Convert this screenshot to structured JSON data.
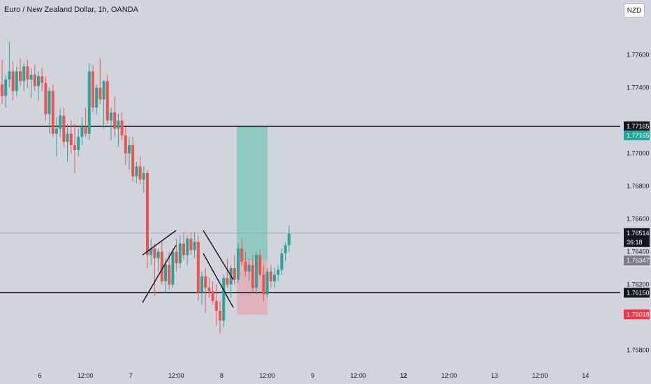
{
  "header": {
    "title": "Euro / New Zealand Dollar, 1h, OANDA",
    "currency_button": "NZD"
  },
  "colors": {
    "background": "#d1d4dc",
    "up": "#26a69a",
    "down": "#ef5350",
    "line": "#000000",
    "profit_zone": "#8fc9c2",
    "loss_zone": "#e0b3bc"
  },
  "chart_data": {
    "type": "candlestick",
    "symbol": "Euro / New Zealand Dollar",
    "timeframe": "1h",
    "source": "OANDA",
    "ylim": [
      1.757,
      1.7785
    ],
    "y_ticks": [
      "1.77600",
      "1.77400",
      "1.77000",
      "1.76800",
      "1.76600",
      "1.76400",
      "1.76200",
      "1.75800"
    ],
    "x_ticks": [
      {
        "label": "6",
        "bold": false
      },
      {
        "label": "12:00",
        "bold": false
      },
      {
        "label": "7",
        "bold": false
      },
      {
        "label": "12:00",
        "bold": false
      },
      {
        "label": "8",
        "bold": false
      },
      {
        "label": "12:00",
        "bold": false
      },
      {
        "label": "9",
        "bold": false
      },
      {
        "label": "12:00",
        "bold": false
      },
      {
        "label": "12",
        "bold": true
      },
      {
        "label": "12:00",
        "bold": false
      },
      {
        "label": "13",
        "bold": false
      },
      {
        "label": "12:00",
        "bold": false
      },
      {
        "label": "14",
        "bold": false
      }
    ],
    "horizontal_lines": [
      1.77165,
      1.7615
    ],
    "current_price_line": 1.76514,
    "price_labels": [
      {
        "value": 1.77165,
        "text": "1.77165",
        "style": "dark"
      },
      {
        "value": 1.77165,
        "text": "1.77165",
        "style": "green",
        "offset": 1
      },
      {
        "value": 1.76514,
        "text": "1.76514",
        "style": "dark"
      },
      {
        "value": 1.76514,
        "text": "36:18",
        "style": "dark",
        "offset": 1
      },
      {
        "value": 1.76347,
        "text": "1.76347",
        "style": "gray"
      },
      {
        "value": 1.7615,
        "text": "1.76150",
        "style": "dark"
      },
      {
        "value": 1.76018,
        "text": "1.76018",
        "style": "red"
      }
    ],
    "position": {
      "entry": 1.76347,
      "target": 1.77165,
      "stop": 1.76018
    },
    "channels": [
      {
        "lines": [
          [
            [
              1.7638,
              0
            ],
            [
              1.7653,
              1
            ]
          ],
          [
            [
              1.7609,
              0
            ],
            [
              1.7644,
              1
            ]
          ]
        ]
      },
      {
        "lines": [
          [
            [
              1.7653,
              0
            ],
            [
              1.7623,
              1
            ]
          ],
          [
            [
              1.7639,
              0
            ],
            [
              1.7606,
              1
            ]
          ]
        ]
      }
    ],
    "candles": [
      [
        1.7742,
        1.7757,
        1.773,
        1.7735
      ],
      [
        1.7735,
        1.7748,
        1.7728,
        1.7745
      ],
      [
        1.7745,
        1.7768,
        1.774,
        1.775
      ],
      [
        1.775,
        1.7756,
        1.7732,
        1.7738
      ],
      [
        1.7738,
        1.7753,
        1.7735,
        1.775
      ],
      [
        1.775,
        1.7758,
        1.7741,
        1.7744
      ],
      [
        1.7744,
        1.7755,
        1.7738,
        1.7753
      ],
      [
        1.7753,
        1.7757,
        1.774,
        1.7745
      ],
      [
        1.7745,
        1.7752,
        1.7734,
        1.7748
      ],
      [
        1.7748,
        1.7754,
        1.7738,
        1.7741
      ],
      [
        1.7741,
        1.775,
        1.7732,
        1.7747
      ],
      [
        1.7747,
        1.7752,
        1.7738,
        1.7743
      ],
      [
        1.7743,
        1.7747,
        1.772,
        1.7724
      ],
      [
        1.7724,
        1.774,
        1.7712,
        1.7738
      ],
      [
        1.7738,
        1.7742,
        1.771,
        1.7712
      ],
      [
        1.7712,
        1.7722,
        1.7698,
        1.7715
      ],
      [
        1.7715,
        1.7727,
        1.771,
        1.7723
      ],
      [
        1.7723,
        1.7728,
        1.7704,
        1.7707
      ],
      [
        1.7707,
        1.7718,
        1.7695,
        1.7712
      ],
      [
        1.7712,
        1.772,
        1.77,
        1.7705
      ],
      [
        1.7705,
        1.7718,
        1.7688,
        1.7702
      ],
      [
        1.7702,
        1.7715,
        1.7698,
        1.771
      ],
      [
        1.771,
        1.7722,
        1.7705,
        1.7716
      ],
      [
        1.7716,
        1.7728,
        1.771,
        1.7712
      ],
      [
        1.7712,
        1.7755,
        1.7708,
        1.775
      ],
      [
        1.775,
        1.7754,
        1.7725,
        1.7728
      ],
      [
        1.7728,
        1.7742,
        1.7724,
        1.774
      ],
      [
        1.774,
        1.7758,
        1.773,
        1.7733
      ],
      [
        1.7733,
        1.7745,
        1.7715,
        1.7744
      ],
      [
        1.7744,
        1.7748,
        1.7718,
        1.772
      ],
      [
        1.772,
        1.7728,
        1.7708,
        1.7725
      ],
      [
        1.7725,
        1.7735,
        1.771,
        1.7715
      ],
      [
        1.7715,
        1.7724,
        1.7704,
        1.772
      ],
      [
        1.772,
        1.7725,
        1.7708,
        1.7711
      ],
      [
        1.7711,
        1.7716,
        1.7693,
        1.77
      ],
      [
        1.77,
        1.771,
        1.769,
        1.7705
      ],
      [
        1.7705,
        1.771,
        1.7683,
        1.7686
      ],
      [
        1.7686,
        1.7695,
        1.7682,
        1.7692
      ],
      [
        1.7692,
        1.7698,
        1.7681,
        1.7684
      ],
      [
        1.7684,
        1.7692,
        1.7676,
        1.7688
      ],
      [
        1.7688,
        1.769,
        1.763,
        1.7638
      ],
      [
        1.7638,
        1.7648,
        1.7632,
        1.7642
      ],
      [
        1.7642,
        1.7645,
        1.7613,
        1.7636
      ],
      [
        1.7636,
        1.7642,
        1.7628,
        1.764
      ],
      [
        1.764,
        1.7646,
        1.762,
        1.7622
      ],
      [
        1.7622,
        1.7636,
        1.7615,
        1.7632
      ],
      [
        1.7632,
        1.764,
        1.7617,
        1.762
      ],
      [
        1.762,
        1.7642,
        1.7618,
        1.764
      ],
      [
        1.764,
        1.7648,
        1.7628,
        1.7633
      ],
      [
        1.7633,
        1.765,
        1.763,
        1.7645
      ],
      [
        1.7645,
        1.7652,
        1.7635,
        1.7638
      ],
      [
        1.7638,
        1.765,
        1.7632,
        1.7648
      ],
      [
        1.7648,
        1.7652,
        1.7638,
        1.7641
      ],
      [
        1.7641,
        1.7652,
        1.7636,
        1.7646
      ],
      [
        1.7646,
        1.765,
        1.761,
        1.7615
      ],
      [
        1.7615,
        1.7628,
        1.7608,
        1.7625
      ],
      [
        1.7625,
        1.763,
        1.7603,
        1.7618
      ],
      [
        1.7618,
        1.7624,
        1.7612,
        1.7616
      ],
      [
        1.7616,
        1.7622,
        1.7608,
        1.761
      ],
      [
        1.761,
        1.762,
        1.7595,
        1.7604
      ],
      [
        1.7604,
        1.761,
        1.759,
        1.7598
      ],
      [
        1.7598,
        1.7626,
        1.7594,
        1.7624
      ],
      [
        1.7624,
        1.7636,
        1.7618,
        1.762
      ],
      [
        1.762,
        1.7632,
        1.7612,
        1.763
      ],
      [
        1.763,
        1.7638,
        1.762,
        1.7623
      ],
      [
        1.7623,
        1.7645,
        1.7621,
        1.7642
      ],
      [
        1.7642,
        1.7648,
        1.7632,
        1.7634
      ],
      [
        1.7634,
        1.764,
        1.7625,
        1.7628
      ],
      [
        1.7628,
        1.7636,
        1.7622,
        1.7632
      ],
      [
        1.7632,
        1.7638,
        1.7615,
        1.7618
      ],
      [
        1.7618,
        1.764,
        1.7614,
        1.7638
      ],
      [
        1.7638,
        1.7641,
        1.7625,
        1.7626
      ],
      [
        1.7626,
        1.7632,
        1.761,
        1.7614
      ],
      [
        1.7614,
        1.763,
        1.7612,
        1.7628
      ],
      [
        1.7628,
        1.7632,
        1.7618,
        1.7622
      ],
      [
        1.7622,
        1.763,
        1.7618,
        1.7626
      ],
      [
        1.7626,
        1.7632,
        1.7622,
        1.7629
      ],
      [
        1.7629,
        1.7642,
        1.7626,
        1.7639
      ],
      [
        1.7639,
        1.7646,
        1.7634,
        1.7644
      ],
      [
        1.7644,
        1.7656,
        1.764,
        1.7651
      ]
    ]
  }
}
